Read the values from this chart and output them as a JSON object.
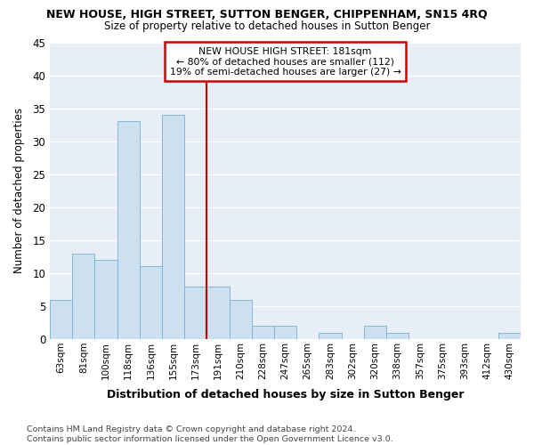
{
  "title": "NEW HOUSE, HIGH STREET, SUTTON BENGER, CHIPPENHAM, SN15 4RQ",
  "subtitle": "Size of property relative to detached houses in Sutton Benger",
  "xlabel": "Distribution of detached houses by size in Sutton Benger",
  "ylabel": "Number of detached properties",
  "categories": [
    "63sqm",
    "81sqm",
    "100sqm",
    "118sqm",
    "136sqm",
    "155sqm",
    "173sqm",
    "191sqm",
    "210sqm",
    "228sqm",
    "247sqm",
    "265sqm",
    "283sqm",
    "302sqm",
    "320sqm",
    "338sqm",
    "357sqm",
    "375sqm",
    "393sqm",
    "412sqm",
    "430sqm"
  ],
  "values": [
    6,
    13,
    12,
    33,
    11,
    34,
    8,
    8,
    6,
    2,
    2,
    0,
    1,
    0,
    2,
    1,
    0,
    0,
    0,
    0,
    1
  ],
  "bar_color": "#cce0f0",
  "bar_edge_color": "#7ab0d0",
  "vline_idx": 7,
  "vline_label": "NEW HOUSE HIGH STREET: 181sqm",
  "annotation_line1": "← 80% of detached houses are smaller (112)",
  "annotation_line2": "19% of semi-detached houses are larger (27) →",
  "annotation_box_color": "#cc0000",
  "ylim": [
    0,
    45
  ],
  "yticks": [
    0,
    5,
    10,
    15,
    20,
    25,
    30,
    35,
    40,
    45
  ],
  "footer": "Contains HM Land Registry data © Crown copyright and database right 2024.\nContains public sector information licensed under the Open Government Licence v3.0.",
  "bg_color": "#e8eef8"
}
